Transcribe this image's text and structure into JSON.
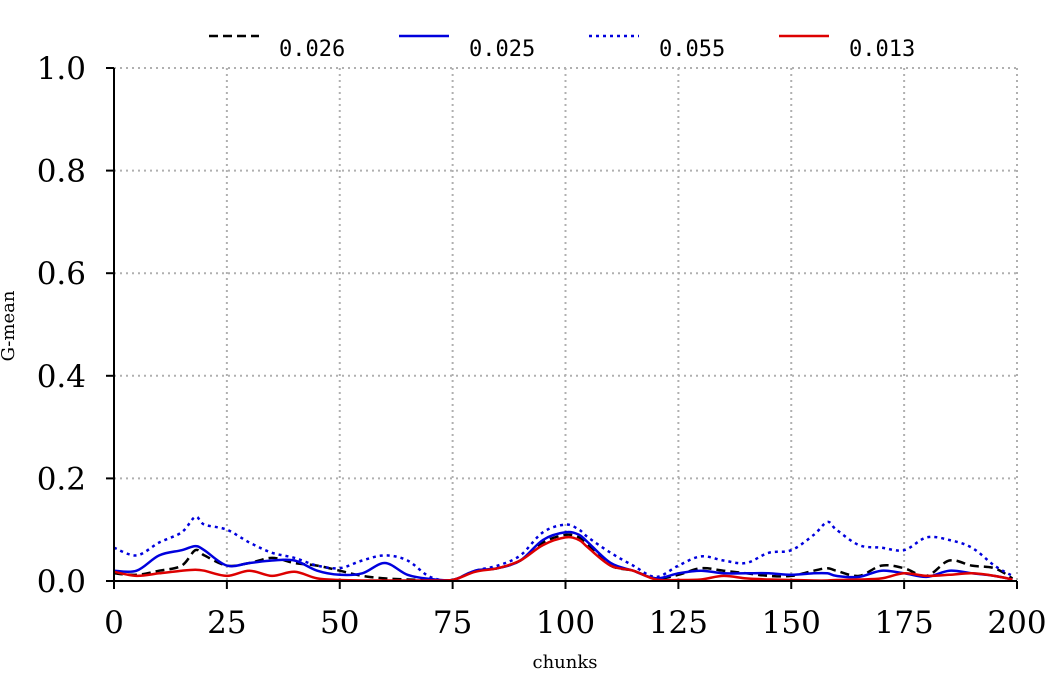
{
  "chart_data": {
    "type": "line",
    "title": "",
    "xlabel": "chunks",
    "ylabel": "G-mean",
    "xlim": [
      0,
      200
    ],
    "ylim": [
      0,
      1.0
    ],
    "xticks": [
      "0",
      "25",
      "50",
      "75",
      "100",
      "125",
      "150",
      "175",
      "200"
    ],
    "yticks": [
      "0.0",
      "0.2",
      "0.4",
      "0.6",
      "0.8",
      "1.0"
    ],
    "grid": true,
    "legend_position": "top",
    "x": [
      0,
      5,
      10,
      15,
      18,
      20,
      25,
      30,
      35,
      40,
      45,
      50,
      55,
      60,
      65,
      70,
      75,
      80,
      85,
      90,
      95,
      100,
      103,
      105,
      110,
      115,
      120,
      125,
      130,
      135,
      140,
      145,
      150,
      155,
      158,
      160,
      165,
      170,
      175,
      180,
      185,
      190,
      195,
      199
    ],
    "series": [
      {
        "name": "0.026",
        "color": "#000000",
        "dash": "dashed",
        "values": [
          0.015,
          0.012,
          0.02,
          0.03,
          0.06,
          0.05,
          0.03,
          0.035,
          0.045,
          0.035,
          0.03,
          0.02,
          0.01,
          0.005,
          0.003,
          0.002,
          0.002,
          0.02,
          0.025,
          0.04,
          0.075,
          0.09,
          0.085,
          0.07,
          0.03,
          0.02,
          0.005,
          0.012,
          0.025,
          0.02,
          0.015,
          0.01,
          0.01,
          0.02,
          0.025,
          0.02,
          0.01,
          0.03,
          0.025,
          0.01,
          0.04,
          0.03,
          0.025,
          0.005
        ]
      },
      {
        "name": "0.025",
        "color": "#0000dd",
        "dash": "solid",
        "values": [
          0.02,
          0.02,
          0.05,
          0.06,
          0.068,
          0.06,
          0.03,
          0.035,
          0.04,
          0.04,
          0.02,
          0.012,
          0.015,
          0.035,
          0.012,
          0.004,
          0.002,
          0.02,
          0.025,
          0.04,
          0.08,
          0.095,
          0.09,
          0.075,
          0.035,
          0.02,
          0.005,
          0.015,
          0.02,
          0.015,
          0.015,
          0.015,
          0.012,
          0.015,
          0.015,
          0.01,
          0.008,
          0.02,
          0.015,
          0.008,
          0.02,
          0.015,
          0.01,
          0.003
        ]
      },
      {
        "name": "0.055",
        "color": "#0000dd",
        "dash": "dotted",
        "values": [
          0.065,
          0.05,
          0.075,
          0.095,
          0.125,
          0.11,
          0.1,
          0.075,
          0.055,
          0.045,
          0.03,
          0.025,
          0.04,
          0.05,
          0.04,
          0.008,
          0.002,
          0.02,
          0.03,
          0.05,
          0.095,
          0.11,
          0.1,
          0.085,
          0.055,
          0.03,
          0.008,
          0.03,
          0.048,
          0.04,
          0.035,
          0.055,
          0.06,
          0.09,
          0.115,
          0.1,
          0.07,
          0.065,
          0.06,
          0.085,
          0.08,
          0.065,
          0.03,
          0.01
        ]
      },
      {
        "name": "0.013",
        "color": "#dd0000",
        "dash": "solid",
        "values": [
          0.018,
          0.01,
          0.015,
          0.02,
          0.022,
          0.02,
          0.01,
          0.02,
          0.01,
          0.018,
          0.005,
          0.002,
          0.001,
          0.001,
          0.001,
          0.001,
          0.002,
          0.018,
          0.025,
          0.04,
          0.07,
          0.085,
          0.08,
          0.065,
          0.03,
          0.02,
          0.003,
          0.002,
          0.003,
          0.01,
          0.005,
          0.003,
          0.002,
          0.001,
          0.001,
          0.002,
          0.003,
          0.005,
          0.015,
          0.01,
          0.012,
          0.015,
          0.01,
          0.003
        ]
      }
    ]
  }
}
